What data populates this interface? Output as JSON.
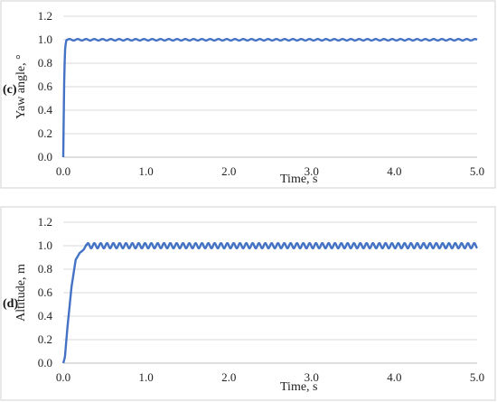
{
  "chart_data": [
    {
      "type": "line",
      "panel_label": "(c)",
      "xlabel": "Time, s",
      "ylabel": "Yaw angle, °",
      "xlim": [
        0,
        5
      ],
      "ylim": [
        0,
        1.2
      ],
      "x_ticks": [
        "0.0",
        "1.0",
        "2.0",
        "3.0",
        "4.0",
        "5.0"
      ],
      "y_ticks": [
        "0.0",
        "0.2",
        "0.4",
        "0.6",
        "0.8",
        "1.0",
        "1.2"
      ],
      "grid": "horizontal",
      "line_color": "#4472C4",
      "series": [
        {
          "x": [
            0.0,
            0.01,
            0.02,
            0.03,
            0.04,
            0.05,
            0.06,
            0.08,
            0.1,
            0.15,
            0.2,
            0.25,
            0.3,
            0.4,
            0.5,
            0.75,
            1.0,
            1.5,
            2.0,
            2.5,
            3.0,
            3.5,
            4.0,
            4.5,
            5.0
          ],
          "values": [
            0.0,
            0.6,
            0.9,
            0.97,
            1.0,
            1.0,
            0.99,
            1.0,
            1.01,
            0.99,
            1.01,
            0.99,
            1.01,
            0.99,
            1.01,
            0.99,
            1.0,
            1.0,
            1.0,
            1.0,
            1.0,
            1.0,
            1.0,
            1.0,
            0.99
          ]
        }
      ]
    },
    {
      "type": "line",
      "panel_label": "(d)",
      "xlabel": "Time, s",
      "ylabel": "Altitude, m",
      "xlim": [
        0,
        5
      ],
      "ylim": [
        0,
        1.2
      ],
      "x_ticks": [
        "0.0",
        "1.0",
        "2.0",
        "3.0",
        "4.0",
        "5.0"
      ],
      "y_ticks": [
        "0.0",
        "0.2",
        "0.4",
        "0.6",
        "0.8",
        "1.0",
        "1.2"
      ],
      "grid": "horizontal",
      "line_color": "#4472C4",
      "series": [
        {
          "x": [
            0.0,
            0.02,
            0.05,
            0.1,
            0.15,
            0.2,
            0.22,
            0.25,
            0.28,
            0.3,
            0.35,
            0.45,
            0.55,
            0.65,
            0.75,
            1.0,
            1.5,
            2.0,
            2.5,
            3.0,
            3.5,
            4.0,
            4.5,
            5.0
          ],
          "values": [
            0.0,
            0.05,
            0.3,
            0.65,
            0.88,
            0.94,
            0.95,
            0.97,
            1.01,
            1.02,
            0.98,
            1.02,
            0.98,
            1.02,
            0.98,
            1.0,
            1.0,
            1.0,
            1.0,
            1.0,
            1.0,
            1.0,
            1.0,
            0.98
          ]
        }
      ]
    }
  ]
}
